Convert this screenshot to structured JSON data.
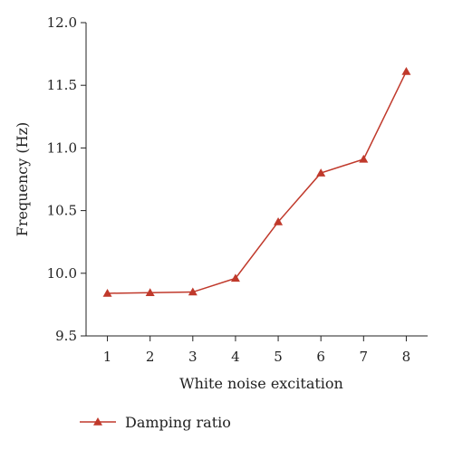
{
  "chart_data": {
    "type": "line",
    "title": "",
    "xlabel": "White noise excitation",
    "ylabel": "Frequency (Hz)",
    "x": [
      1,
      2,
      3,
      4,
      5,
      6,
      7,
      8
    ],
    "x_tick_labels": [
      "1",
      "2",
      "3",
      "4",
      "5",
      "6",
      "7",
      "8"
    ],
    "y_tick_labels": [
      "9.5",
      "10.0",
      "10.5",
      "11.0",
      "11.5",
      "12.0"
    ],
    "y_ticks": [
      9.5,
      10.0,
      10.5,
      11.0,
      11.5,
      12.0
    ],
    "xlim": [
      0.5,
      8.5
    ],
    "ylim": [
      9.5,
      12.0
    ],
    "grid": false,
    "legend_position": "bottom-left",
    "series": [
      {
        "name": "Damping ratio",
        "color": "#c0392b",
        "marker": "triangle",
        "values": [
          9.84,
          9.845,
          9.85,
          9.96,
          10.41,
          10.8,
          10.91,
          11.61
        ]
      }
    ]
  }
}
